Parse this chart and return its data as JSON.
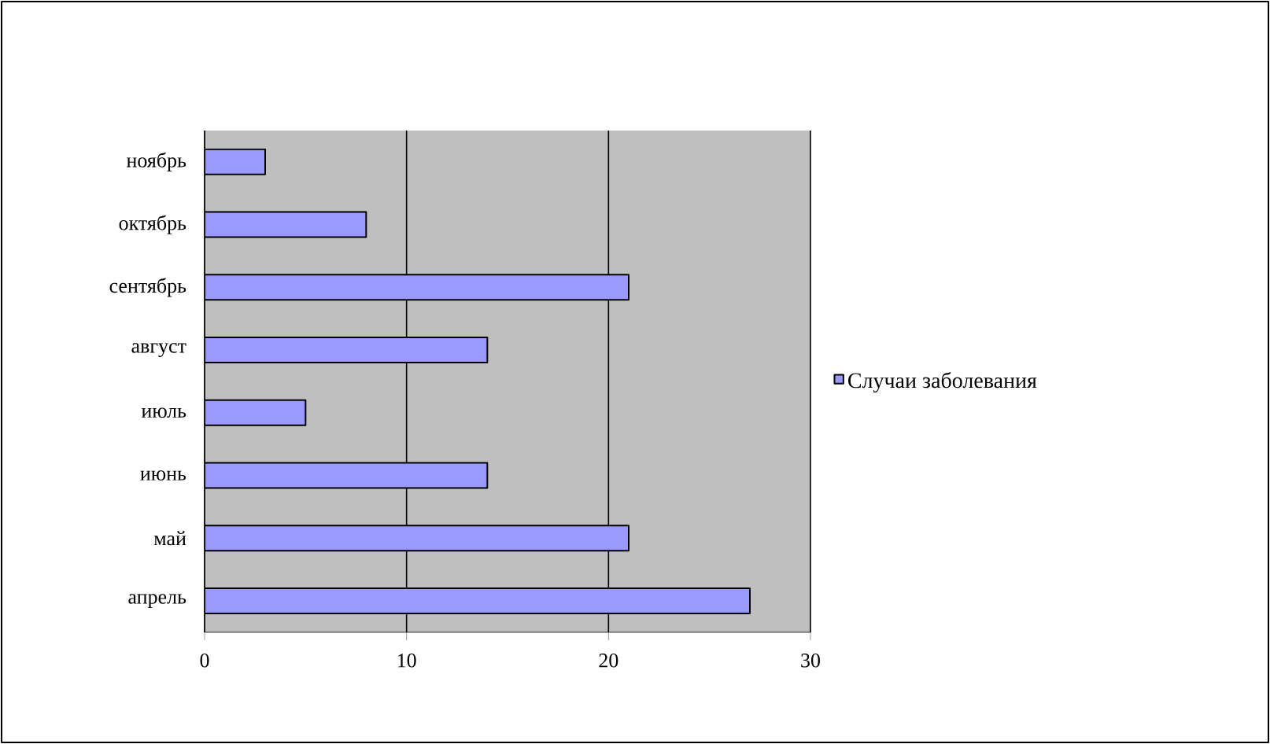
{
  "chart_data": {
    "type": "bar",
    "orientation": "horizontal",
    "categories": [
      "ноябрь",
      "октябрь",
      "сентябрь",
      "август",
      "июль",
      "июнь",
      "май",
      "апрель"
    ],
    "series": [
      {
        "name": "Случаи заболевания",
        "color": "#9999ff",
        "values": [
          3,
          8,
          21,
          14,
          5,
          14,
          21,
          27
        ]
      }
    ],
    "xlim": [
      0,
      30
    ],
    "xticks": [
      0,
      10,
      20,
      30
    ],
    "grid": "x",
    "legend": "right"
  }
}
